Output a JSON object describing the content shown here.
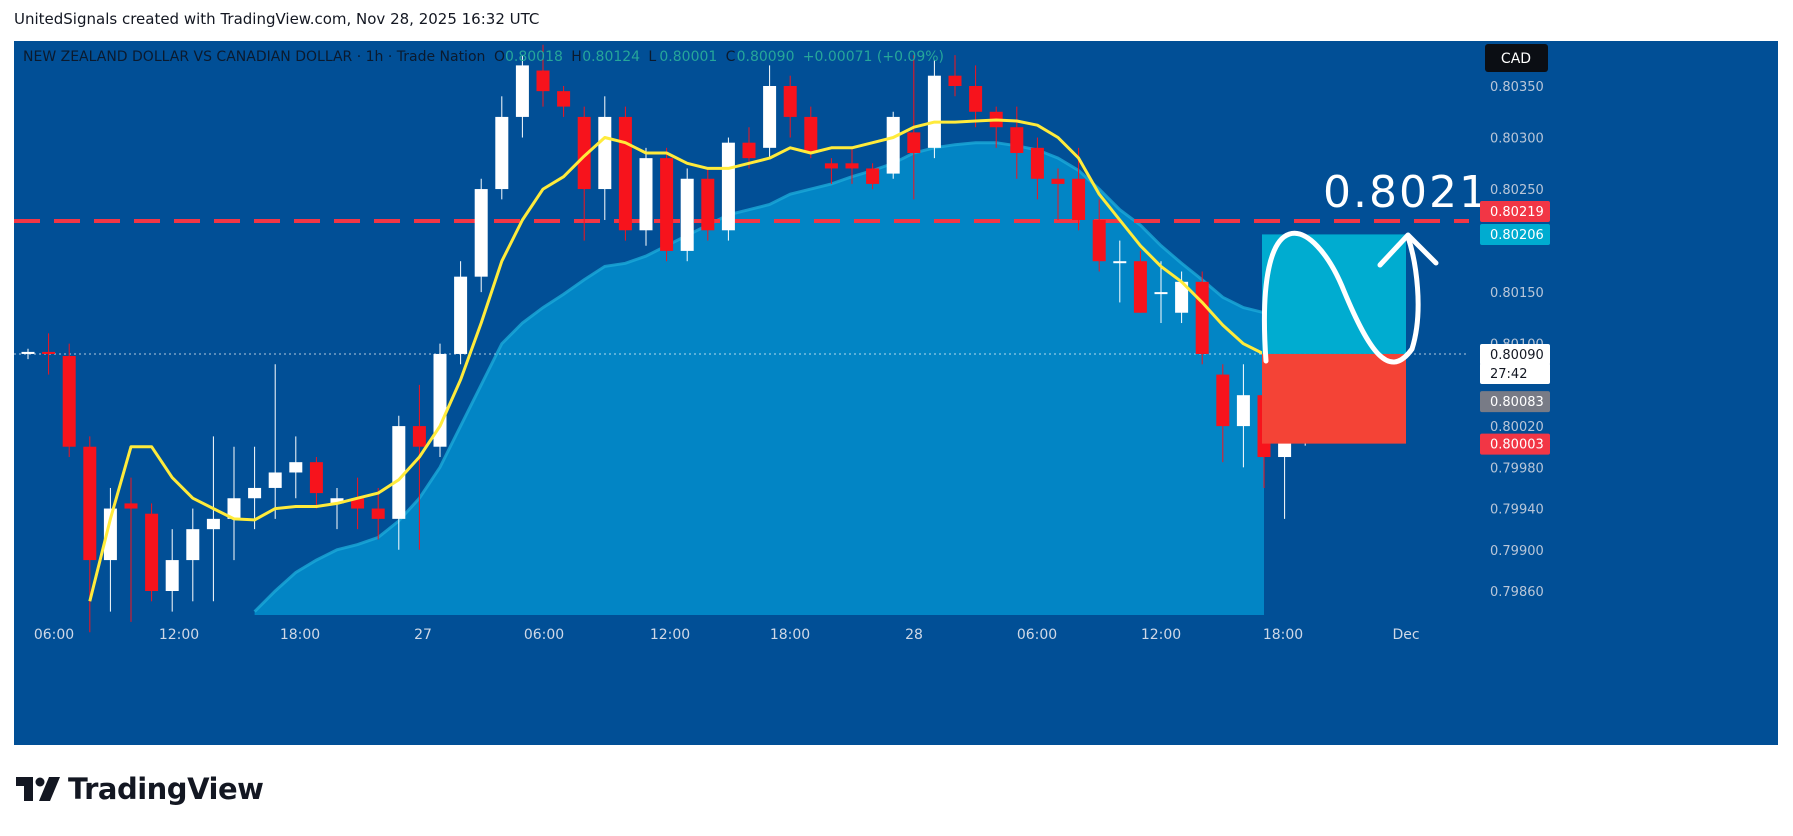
{
  "header": {
    "credit": "UnitedSignals created with TradingView.com, Nov 28, 2025 16:32 UTC"
  },
  "footer": {
    "logo_text": "TradingView"
  },
  "colors": {
    "background": "#014f96",
    "bull": "#ffffff",
    "bear": "#f7131c",
    "ma_line": "#ffeb3b",
    "cloud_fill": "#0288c7",
    "cloud_edge": "#1ba9d8",
    "dashed_level": "#f23645",
    "target_box": "#00acd0",
    "stop_box": "#f44336"
  },
  "chart_data": {
    "type": "candlestick",
    "symbol_title": "NEW ZEALAND DOLLAR VS CANADIAN DOLLAR · 1h · Trade Nation",
    "ohlc_header": [
      {
        "key": "O",
        "value": "0.80018"
      },
      {
        "key": "H",
        "value": "0.80124"
      },
      {
        "key": "L",
        "value": "0.80001"
      },
      {
        "key": "C",
        "value": "0.80090"
      },
      {
        "key": "",
        "value": "+0.00071 (+0.09%)"
      }
    ],
    "currency": "CAD",
    "price_axis_ticks": [
      "0.80350",
      "0.80300",
      "0.80250",
      "0.80150",
      "0.80100",
      "0.80020",
      "0.79980",
      "0.79940",
      "0.79900",
      "0.79860"
    ],
    "time_axis_labels": [
      "06:00",
      "12:00",
      "18:00",
      "27",
      "06:00",
      "12:00",
      "18:00",
      "28",
      "06:00",
      "12:00",
      "18:00",
      "Dec"
    ],
    "price_tags": [
      {
        "label": "0.80219",
        "kind": "level"
      },
      {
        "label": "0.80206",
        "kind": "target"
      },
      {
        "label": "0.80090",
        "kind": "last"
      },
      {
        "label": "27:42",
        "kind": "countdown"
      },
      {
        "label": "0.80083",
        "kind": "indicator"
      },
      {
        "label": "0.80003",
        "kind": "stop"
      }
    ],
    "annotation": "0.8021",
    "levels": {
      "resistance": 0.80219,
      "target": 0.80206,
      "last": 0.8009,
      "stop": 0.80003
    },
    "candles": [
      [
        0.8009,
        0.80095,
        0.80085,
        0.80092
      ],
      [
        0.80092,
        0.8011,
        0.8007,
        0.8009
      ],
      [
        0.80088,
        0.801,
        0.7999,
        0.8
      ],
      [
        0.8,
        0.8001,
        0.7982,
        0.7989
      ],
      [
        0.7989,
        0.7996,
        0.7984,
        0.7994
      ],
      [
        0.79945,
        0.7997,
        0.7983,
        0.7994
      ],
      [
        0.79935,
        0.79945,
        0.7985,
        0.7986
      ],
      [
        0.7986,
        0.7992,
        0.7984,
        0.7989
      ],
      [
        0.7989,
        0.7994,
        0.7985,
        0.7992
      ],
      [
        0.7992,
        0.8001,
        0.7985,
        0.7993
      ],
      [
        0.7993,
        0.8,
        0.7989,
        0.7995
      ],
      [
        0.7995,
        0.8,
        0.7992,
        0.7996
      ],
      [
        0.7996,
        0.8008,
        0.7993,
        0.79975
      ],
      [
        0.79975,
        0.8001,
        0.7995,
        0.79985
      ],
      [
        0.79985,
        0.7999,
        0.7994,
        0.79955
      ],
      [
        0.79945,
        0.7996,
        0.7992,
        0.7995
      ],
      [
        0.7995,
        0.7997,
        0.7992,
        0.7994
      ],
      [
        0.7994,
        0.7996,
        0.7991,
        0.7993
      ],
      [
        0.7993,
        0.8003,
        0.799,
        0.8002
      ],
      [
        0.8002,
        0.8006,
        0.799,
        0.8
      ],
      [
        0.8,
        0.801,
        0.7999,
        0.8009
      ],
      [
        0.8009,
        0.8018,
        0.8008,
        0.80165
      ],
      [
        0.80165,
        0.8026,
        0.8015,
        0.8025
      ],
      [
        0.8025,
        0.8034,
        0.8024,
        0.8032
      ],
      [
        0.8032,
        0.8038,
        0.803,
        0.8037
      ],
      [
        0.80365,
        0.8039,
        0.8033,
        0.80345
      ],
      [
        0.80345,
        0.8035,
        0.8032,
        0.8033
      ],
      [
        0.8032,
        0.8033,
        0.802,
        0.8025
      ],
      [
        0.8025,
        0.8034,
        0.8022,
        0.8032
      ],
      [
        0.8032,
        0.8033,
        0.802,
        0.8021
      ],
      [
        0.8021,
        0.8029,
        0.80195,
        0.8028
      ],
      [
        0.8028,
        0.8029,
        0.8018,
        0.8019
      ],
      [
        0.8019,
        0.8027,
        0.8018,
        0.8026
      ],
      [
        0.8026,
        0.8027,
        0.802,
        0.8021
      ],
      [
        0.8021,
        0.803,
        0.802,
        0.80295
      ],
      [
        0.80295,
        0.8031,
        0.8027,
        0.8028
      ],
      [
        0.8029,
        0.8037,
        0.8028,
        0.8035
      ],
      [
        0.8035,
        0.8036,
        0.803,
        0.8032
      ],
      [
        0.8032,
        0.8033,
        0.8028,
        0.80285
      ],
      [
        0.80275,
        0.8028,
        0.80255,
        0.8027
      ],
      [
        0.80275,
        0.8029,
        0.80255,
        0.8027
      ],
      [
        0.8027,
        0.80275,
        0.8025,
        0.80255
      ],
      [
        0.80265,
        0.80325,
        0.8026,
        0.8032
      ],
      [
        0.80305,
        0.8038,
        0.8024,
        0.80285
      ],
      [
        0.8029,
        0.80375,
        0.8028,
        0.8036
      ],
      [
        0.8036,
        0.8038,
        0.8034,
        0.8035
      ],
      [
        0.8035,
        0.8037,
        0.8031,
        0.80325
      ],
      [
        0.80325,
        0.8033,
        0.8029,
        0.8031
      ],
      [
        0.8031,
        0.8033,
        0.8026,
        0.80285
      ],
      [
        0.8029,
        0.803,
        0.8024,
        0.8026
      ],
      [
        0.8026,
        0.8027,
        0.8022,
        0.80255
      ],
      [
        0.8026,
        0.8029,
        0.8021,
        0.8022
      ],
      [
        0.8022,
        0.8024,
        0.8017,
        0.8018
      ],
      [
        0.8018,
        0.802,
        0.8014,
        0.8018
      ],
      [
        0.8018,
        0.8019,
        0.8013,
        0.8013
      ],
      [
        0.8015,
        0.8018,
        0.8012,
        0.8015
      ],
      [
        0.8013,
        0.8017,
        0.8012,
        0.8016
      ],
      [
        0.8016,
        0.8017,
        0.8008,
        0.8009
      ],
      [
        0.8007,
        0.8008,
        0.79985,
        0.8002
      ],
      [
        0.8002,
        0.8008,
        0.7998,
        0.8005
      ],
      [
        0.8005,
        0.8006,
        0.7996,
        0.7999
      ],
      [
        0.7999,
        0.8006,
        0.7993,
        0.8001
      ],
      [
        0.80018,
        0.80124,
        0.80001,
        0.8009
      ]
    ],
    "ma_line": [
      null,
      null,
      null,
      0.7985,
      0.7993,
      0.8,
      0.8,
      0.7997,
      0.7995,
      0.7994,
      0.7993,
      0.79929,
      0.7994,
      0.79942,
      0.79942,
      0.79945,
      0.7995,
      0.79955,
      0.79968,
      0.7999,
      0.8002,
      0.80065,
      0.8012,
      0.8018,
      0.8022,
      0.8025,
      0.80262,
      0.80282,
      0.803,
      0.80295,
      0.80285,
      0.80285,
      0.80275,
      0.8027,
      0.8027,
      0.80275,
      0.8028,
      0.8029,
      0.80285,
      0.8029,
      0.8029,
      0.80295,
      0.803,
      0.8031,
      0.80315,
      0.80315,
      0.80316,
      0.80317,
      0.80316,
      0.80312,
      0.803,
      0.8028,
      0.80245,
      0.8022,
      0.80195,
      0.80175,
      0.8016,
      0.8014,
      0.80118,
      0.801,
      0.8009
    ],
    "cloud_upper": [
      null,
      null,
      null,
      null,
      null,
      null,
      null,
      null,
      null,
      null,
      null,
      0.7984,
      0.7986,
      0.79878,
      0.7989,
      0.799,
      0.79905,
      0.79912,
      0.79928,
      0.7995,
      0.7998,
      0.8002,
      0.8006,
      0.801,
      0.8012,
      0.80135,
      0.80148,
      0.80162,
      0.80175,
      0.80178,
      0.80185,
      0.80195,
      0.80205,
      0.80215,
      0.80225,
      0.8023,
      0.80235,
      0.80245,
      0.8025,
      0.80255,
      0.80262,
      0.80268,
      0.80275,
      0.80285,
      0.8029,
      0.80293,
      0.80295,
      0.80295,
      0.80292,
      0.80288,
      0.8028,
      0.80268,
      0.8025,
      0.8023,
      0.80215,
      0.80195,
      0.80178,
      0.80162,
      0.80145,
      0.80135,
      0.8013
    ]
  }
}
